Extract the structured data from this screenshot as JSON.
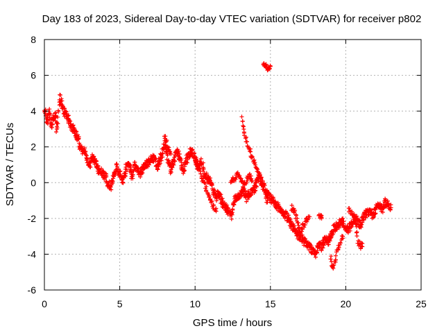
{
  "chart_data": {
    "type": "scatter",
    "title": "Day 183 of 2023, Sidereal Day-to-day VTEC variation (SDTVAR) for receiver p802",
    "xlabel": "GPS time / hours",
    "ylabel": "SDTVAR / TECUs",
    "xlim": [
      0,
      25
    ],
    "ylim": [
      -6,
      8
    ],
    "xticks": [
      0,
      5,
      10,
      15,
      20,
      25
    ],
    "yticks": [
      -6,
      -4,
      -2,
      0,
      2,
      4,
      6,
      8
    ],
    "grid": true,
    "marker": "+",
    "color": "#ff0000",
    "series": [
      {
        "name": "SDTVAR",
        "trace": [
          [
            0.0,
            4.2
          ],
          [
            0.1,
            3.7
          ],
          [
            0.2,
            3.4
          ],
          [
            0.3,
            4.0
          ],
          [
            0.4,
            3.5
          ],
          [
            0.5,
            3.3
          ],
          [
            0.6,
            3.6
          ],
          [
            0.7,
            3.9
          ],
          [
            0.8,
            3.0
          ],
          [
            0.9,
            3.5
          ],
          [
            1.0,
            4.8
          ],
          [
            1.2,
            4.2
          ],
          [
            1.4,
            3.8
          ],
          [
            1.6,
            3.6
          ],
          [
            1.8,
            3.1
          ],
          [
            2.0,
            2.9
          ],
          [
            2.2,
            2.6
          ],
          [
            2.4,
            1.9
          ],
          [
            2.6,
            1.8
          ],
          [
            2.8,
            1.4
          ],
          [
            3.0,
            1.0
          ],
          [
            3.2,
            1.5
          ],
          [
            3.4,
            1.1
          ],
          [
            3.6,
            0.7
          ],
          [
            3.8,
            0.6
          ],
          [
            4.0,
            0.4
          ],
          [
            4.2,
            0.0
          ],
          [
            4.4,
            -0.2
          ],
          [
            4.6,
            0.4
          ],
          [
            4.8,
            0.9
          ],
          [
            5.0,
            0.5
          ],
          [
            5.2,
            0.1
          ],
          [
            5.4,
            0.8
          ],
          [
            5.6,
            1.0
          ],
          [
            5.8,
            0.3
          ],
          [
            6.0,
            1.0
          ],
          [
            6.3,
            0.5
          ],
          [
            6.6,
            0.9
          ],
          [
            6.9,
            1.1
          ],
          [
            7.2,
            1.4
          ],
          [
            7.5,
            0.9
          ],
          [
            7.8,
            1.6
          ],
          [
            8.0,
            2.3
          ],
          [
            8.2,
            1.3
          ],
          [
            8.4,
            0.7
          ],
          [
            8.6,
            1.2
          ],
          [
            8.8,
            1.8
          ],
          [
            9.0,
            1.3
          ],
          [
            9.2,
            0.7
          ],
          [
            9.4,
            1.2
          ],
          [
            9.6,
            1.6
          ],
          [
            9.8,
            1.8
          ],
          [
            10.0,
            1.2
          ],
          [
            10.2,
            0.7
          ],
          [
            10.4,
            1.3
          ],
          [
            10.6,
            0.6
          ],
          [
            10.8,
            0.2
          ],
          [
            11.0,
            0.1
          ],
          [
            11.2,
            -0.4
          ],
          [
            11.4,
            -0.8
          ],
          [
            11.6,
            -0.6
          ],
          [
            11.8,
            -1.1
          ],
          [
            12.0,
            -1.3
          ],
          [
            12.2,
            -1.6
          ],
          [
            12.4,
            -1.9
          ],
          [
            12.6,
            -1.0
          ],
          [
            12.8,
            -0.8
          ],
          [
            13.0,
            -0.6
          ],
          [
            13.2,
            -0.4
          ],
          [
            13.4,
            -0.9
          ],
          [
            13.6,
            -0.6
          ],
          [
            13.8,
            -0.5
          ],
          [
            14.0,
            -0.3
          ],
          [
            14.2,
            0.4
          ],
          [
            14.4,
            0.2
          ],
          [
            14.6,
            -0.3
          ],
          [
            14.8,
            -0.6
          ],
          [
            15.0,
            -0.9
          ],
          [
            15.2,
            -1.1
          ],
          [
            16.2,
            -2.0
          ],
          [
            16.4,
            -2.4
          ],
          [
            16.6,
            -2.6
          ],
          [
            16.8,
            -2.9
          ],
          [
            17.0,
            -3.0
          ],
          [
            17.2,
            -3.3
          ],
          [
            17.4,
            -3.4
          ],
          [
            17.6,
            -3.6
          ],
          [
            17.8,
            -3.8
          ],
          [
            18.0,
            -4.0
          ],
          [
            18.2,
            -3.5
          ],
          [
            18.4,
            -3.6
          ],
          [
            18.6,
            -3.2
          ],
          [
            18.8,
            -3.3
          ],
          [
            19.0,
            -3.0
          ],
          [
            19.2,
            -2.6
          ],
          [
            19.4,
            -2.4
          ],
          [
            19.6,
            -2.3
          ],
          [
            19.8,
            -2.2
          ],
          [
            20.0,
            -2.5
          ],
          [
            20.2,
            -2.6
          ],
          [
            20.4,
            -2.3
          ],
          [
            20.6,
            -2.0
          ],
          [
            20.8,
            -2.2
          ],
          [
            21.0,
            -2.4
          ],
          [
            21.2,
            -1.9
          ],
          [
            21.4,
            -1.7
          ],
          [
            21.6,
            -1.6
          ],
          [
            21.8,
            -1.8
          ],
          [
            22.0,
            -1.5
          ],
          [
            22.2,
            -1.2
          ],
          [
            22.4,
            -1.5
          ],
          [
            22.6,
            -1.1
          ],
          [
            22.8,
            -1.2
          ],
          [
            23.0,
            -1.4
          ]
        ],
        "branches": [
          [
            [
              8.0,
              2.6
            ],
            [
              8.1,
              2.3
            ],
            [
              8.2,
              2.0
            ],
            [
              8.3,
              1.8
            ],
            [
              8.4,
              1.6
            ]
          ],
          [
            [
              10.0,
              1.4
            ],
            [
              10.2,
              1.0
            ],
            [
              10.4,
              0.4
            ],
            [
              10.6,
              0.0
            ],
            [
              10.8,
              -0.6
            ],
            [
              11.0,
              -1.0
            ],
            [
              11.2,
              -1.3
            ],
            [
              11.4,
              -1.6
            ]
          ],
          [
            [
              13.1,
              3.6
            ],
            [
              13.2,
              3.1
            ],
            [
              13.3,
              2.6
            ],
            [
              13.4,
              2.4
            ],
            [
              13.6,
              1.9
            ],
            [
              13.8,
              1.4
            ],
            [
              14.0,
              1.0
            ],
            [
              14.2,
              0.6
            ],
            [
              14.4,
              0.0
            ],
            [
              14.6,
              -0.6
            ],
            [
              14.8,
              -1.1
            ]
          ],
          [
            [
              12.4,
              0.0
            ],
            [
              12.6,
              0.2
            ],
            [
              12.8,
              0.5
            ],
            [
              13.0,
              0.2
            ],
            [
              13.2,
              -0.2
            ],
            [
              13.4,
              0.1
            ],
            [
              13.6,
              0.4
            ],
            [
              13.8,
              0.1
            ]
          ],
          [
            [
              14.5,
              6.7
            ],
            [
              14.6,
              6.6
            ],
            [
              14.7,
              6.5
            ],
            [
              14.8,
              6.4
            ],
            [
              14.9,
              6.4
            ],
            [
              15.0,
              6.5
            ]
          ],
          [
            [
              16.4,
              -1.4
            ],
            [
              16.6,
              -1.6
            ],
            [
              16.8,
              -2.2
            ],
            [
              17.0,
              -2.7
            ],
            [
              17.2,
              -2.4
            ],
            [
              17.4,
              -2.1
            ],
            [
              17.6,
              -1.9
            ]
          ],
          [
            [
              18.2,
              -1.8
            ],
            [
              18.3,
              -1.9
            ],
            [
              18.4,
              -2.0
            ]
          ],
          [
            [
              19.0,
              -4.2
            ],
            [
              19.1,
              -4.6
            ],
            [
              19.2,
              -4.8
            ],
            [
              19.4,
              -4.0
            ],
            [
              19.6,
              -3.4
            ],
            [
              19.8,
              -3.0
            ]
          ],
          [
            [
              20.2,
              -1.5
            ],
            [
              20.4,
              -1.7
            ],
            [
              20.6,
              -1.9
            ],
            [
              20.8,
              -3.3
            ],
            [
              21.0,
              -3.6
            ],
            [
              21.1,
              -3.4
            ]
          ]
        ]
      }
    ]
  }
}
